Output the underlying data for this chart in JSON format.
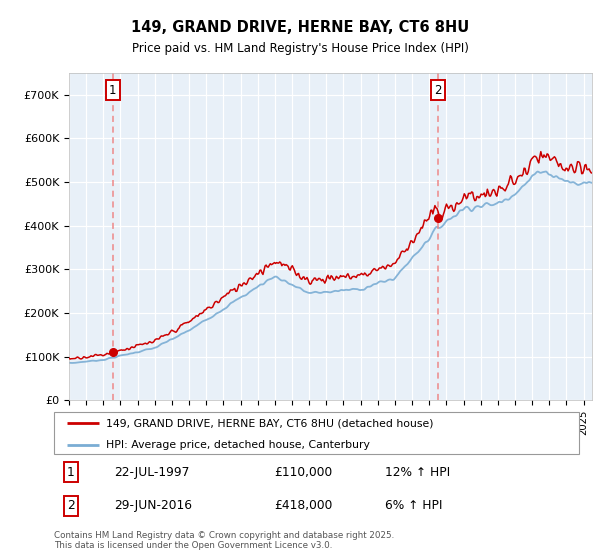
{
  "title1": "149, GRAND DRIVE, HERNE BAY, CT6 8HU",
  "title2": "Price paid vs. HM Land Registry's House Price Index (HPI)",
  "red_label": "149, GRAND DRIVE, HERNE BAY, CT6 8HU (detached house)",
  "blue_label": "HPI: Average price, detached house, Canterbury",
  "annotation1_date": "22-JUL-1997",
  "annotation1_price": "£110,000",
  "annotation1_hpi": "12% ↑ HPI",
  "annotation1_year": 1997.55,
  "annotation1_value": 110000,
  "annotation2_date": "29-JUN-2016",
  "annotation2_price": "£418,000",
  "annotation2_hpi": "6% ↑ HPI",
  "annotation2_year": 2016.49,
  "annotation2_value": 418000,
  "ylim": [
    0,
    750000
  ],
  "xlim_start": 1995,
  "xlim_end": 2025.5,
  "bg_color": "#E8F0F8",
  "footer": "Contains HM Land Registry data © Crown copyright and database right 2025.\nThis data is licensed under the Open Government Licence v3.0.",
  "red_color": "#CC0000",
  "blue_color": "#7AADD4",
  "dashed_color": "#EE8888"
}
